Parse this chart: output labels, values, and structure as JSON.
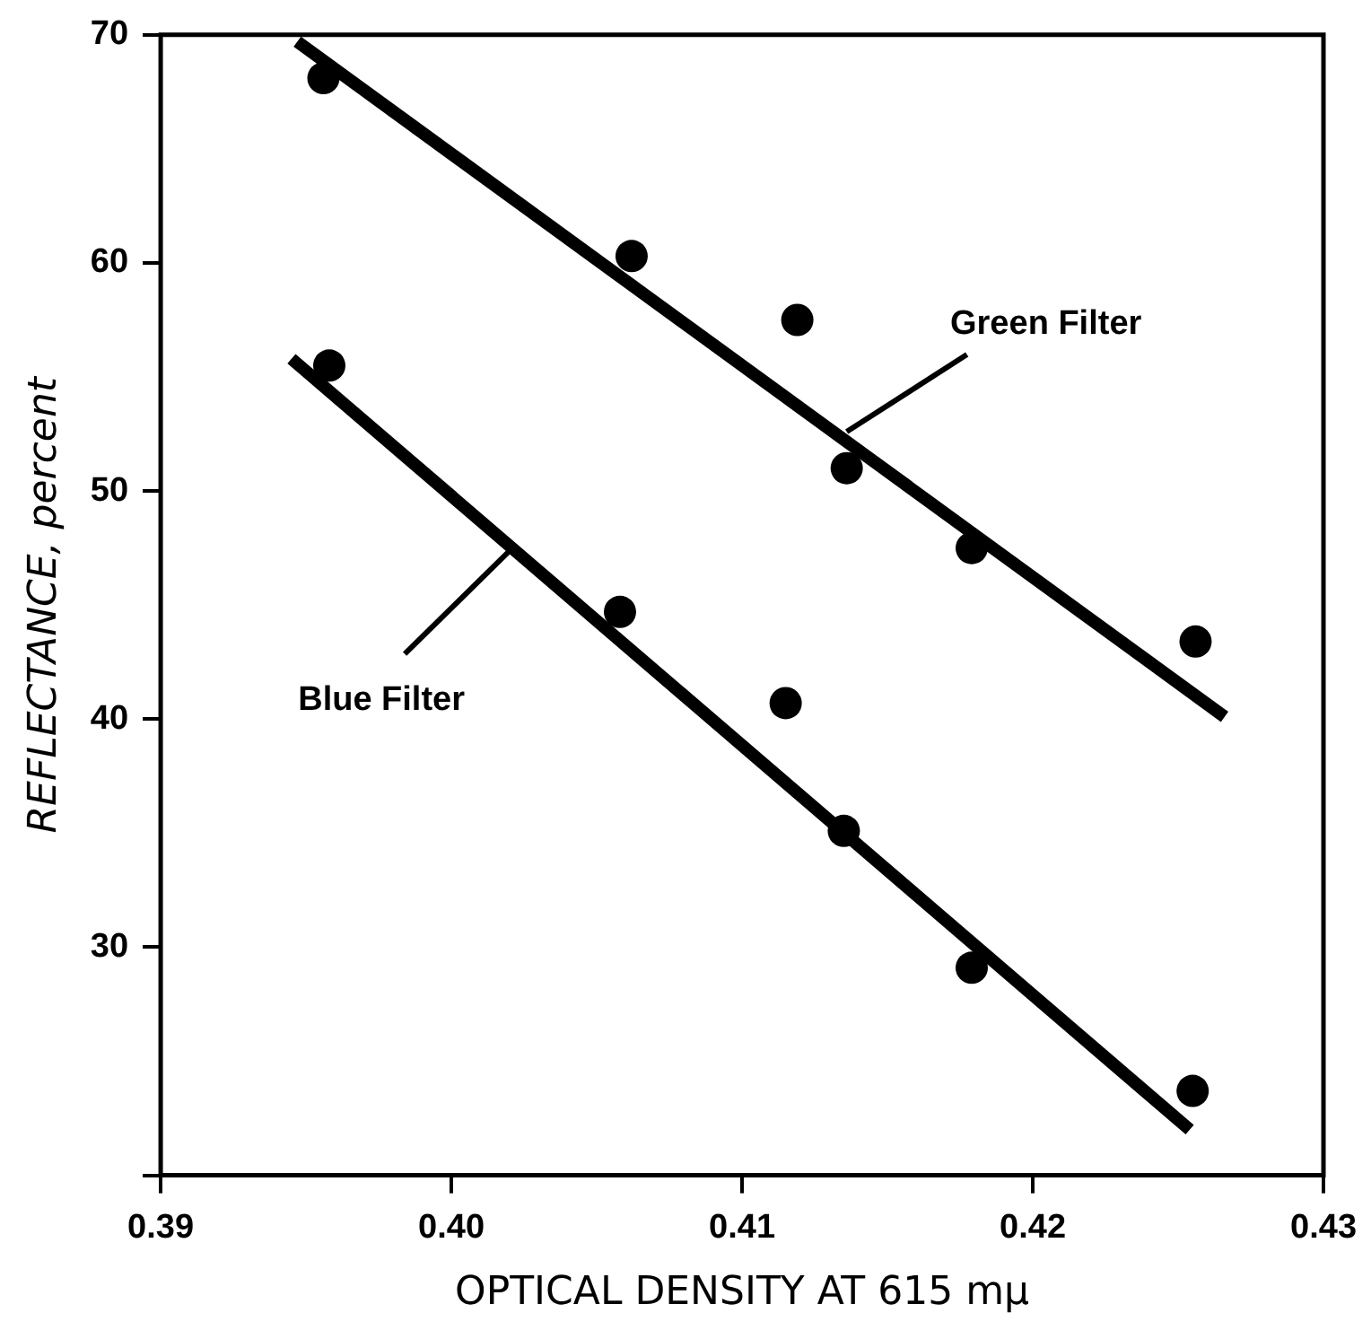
{
  "chart_data": {
    "type": "scatter",
    "xlabel": "OPTICAL DENSITY AT 615 mμ",
    "ylabel": "REFLECTANCE, percent",
    "xlim": [
      0.39,
      0.43
    ],
    "xticks": [
      {
        "value": 0.39,
        "label": "0.39"
      },
      {
        "value": 0.4,
        "label": "0.40"
      },
      {
        "value": 0.41,
        "label": "0.41"
      },
      {
        "value": 0.42,
        "label": "0.42"
      },
      {
        "value": 0.43,
        "label": "0.43"
      }
    ],
    "ylim": [
      20,
      70
    ],
    "yticks": [
      {
        "value": 20,
        "label": null
      },
      30,
      40,
      50,
      60,
      70
    ],
    "grid": false,
    "legend": false,
    "marker": "circle",
    "series": [
      {
        "type": "scatter",
        "color": "#000000",
        "x": [
          0.3956,
          0.4062,
          0.4119,
          0.4136,
          0.4179,
          0.4256
        ],
        "values": [
          68.1,
          60.3,
          57.5,
          51.0,
          47.5,
          43.4
        ]
      },
      {
        "type": "scatter",
        "color": "#000000",
        "x": [
          0.3958,
          0.4058,
          0.4115,
          0.4135,
          0.4179,
          0.4255
        ],
        "values": [
          55.5,
          44.7,
          40.7,
          35.1,
          29.1,
          23.7
        ]
      },
      {
        "type": "line",
        "color": "#000000",
        "marker": "none",
        "line_style": "solid",
        "x": [
          0.3947,
          0.4266
        ],
        "values": [
          69.7,
          40.1
        ]
      },
      {
        "type": "line",
        "color": "#000000",
        "marker": "none",
        "line_style": "solid",
        "x": [
          0.3945,
          0.4254
        ],
        "values": [
          55.8,
          22.0
        ]
      }
    ],
    "annotations": [
      {
        "text": "Green Filter",
        "x": 0.4136,
        "y": 52.6
      },
      {
        "text": "Blue Filter",
        "x": 0.4021,
        "y": 47.5
      }
    ]
  }
}
